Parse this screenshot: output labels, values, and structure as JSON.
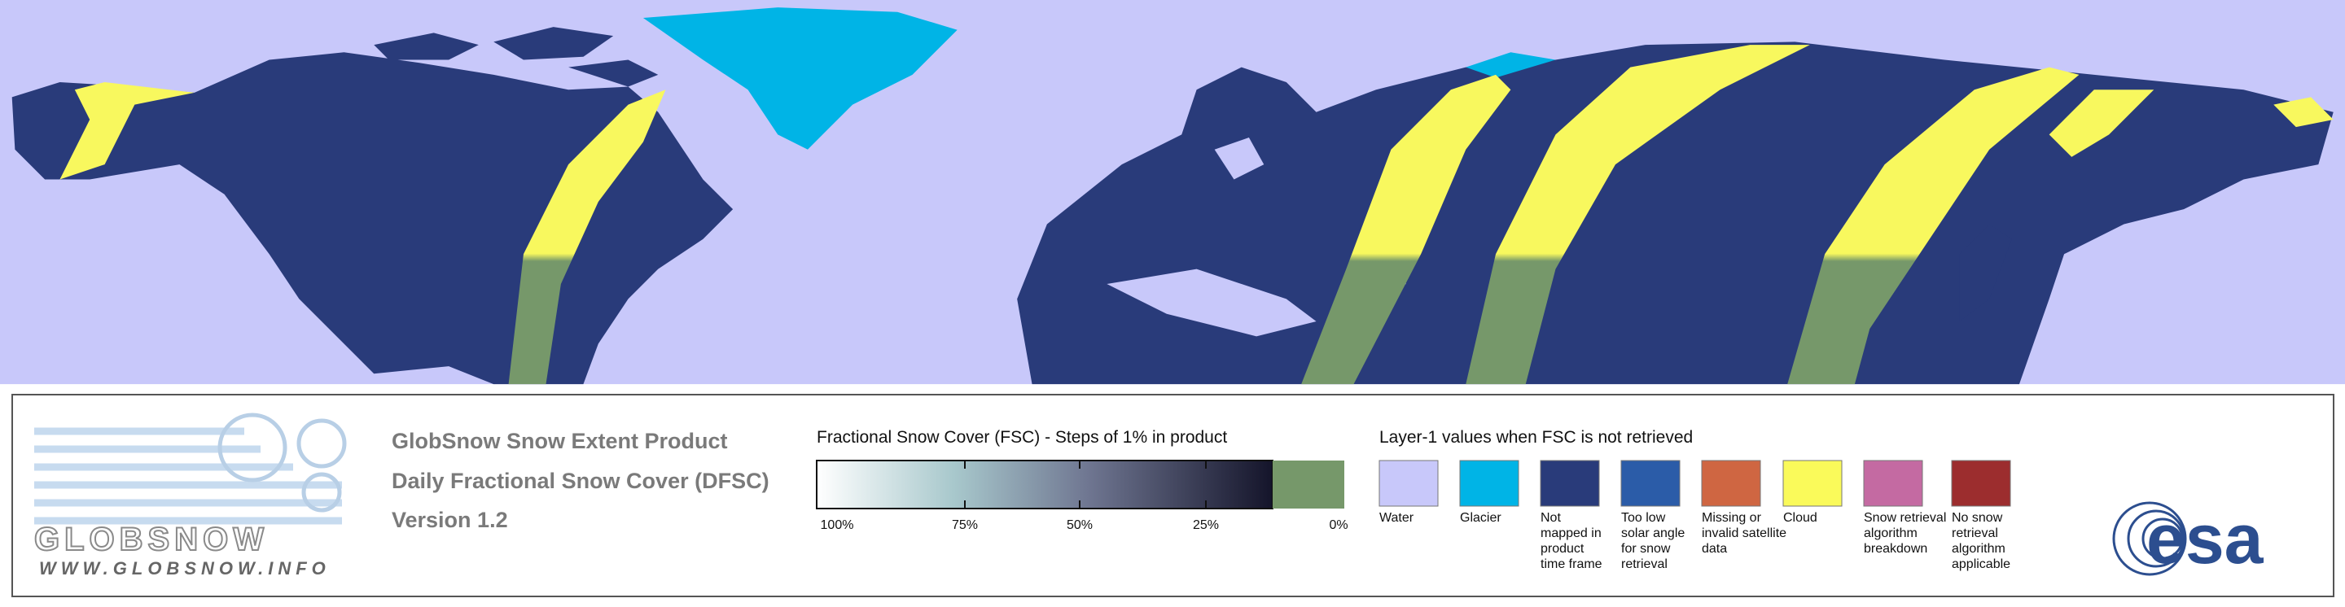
{
  "header": {
    "product": "GlobSnow Snow Extent Product",
    "layer": "Daily Fractional Snow Cover (DFSC)",
    "version": "Version 1.2"
  },
  "logo": {
    "name": "GLOBSNOW",
    "url": "WWW.GLOBSNOW.INFO"
  },
  "fsc_scale": {
    "title": "Fractional Snow Cover (FSC) - Steps of 1% in product",
    "labels": [
      "100%",
      "75%",
      "50%",
      "25%",
      "0%"
    ]
  },
  "layer1_legend": {
    "title": "Layer-1 values when FSC is not retrieved",
    "items": [
      {
        "lines": [
          "Water"
        ],
        "color": "#c8c8fa"
      },
      {
        "lines": [
          "Glacier"
        ],
        "color": "#00b4e6"
      },
      {
        "lines": [
          "Not",
          "mapped in",
          "product",
          "time frame"
        ],
        "color": "#293b7a"
      },
      {
        "lines": [
          "Too low",
          "solar angle",
          "for snow",
          "retrieval"
        ],
        "color": "#2b5ca8"
      },
      {
        "lines": [
          "Missing or",
          "invalid satellite",
          "data"
        ],
        "color": "#cf6642"
      },
      {
        "lines": [
          "Cloud"
        ],
        "color": "#fafa5a"
      },
      {
        "lines": [
          "Snow retrieval",
          "algorithm",
          "breakdown"
        ],
        "color": "#c46aa2"
      },
      {
        "lines": [
          "No snow",
          "retrieval",
          "algorithm",
          "applicable"
        ],
        "color": "#9c2d2e"
      }
    ]
  },
  "esa_logo": "esa"
}
